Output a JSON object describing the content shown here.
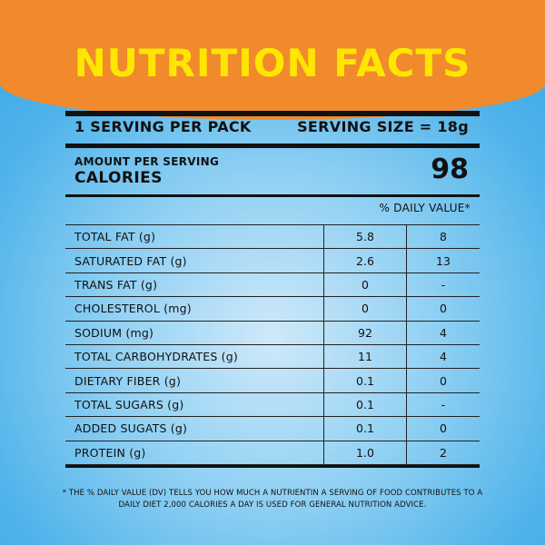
{
  "title": "NUTRITION FACTS",
  "serving": {
    "per_pack": "1 SERVING PER PACK",
    "size": "SERVING SIZE = 18g"
  },
  "calories": {
    "amount_label": "AMOUNT PER SERVING",
    "label": "CALORIES",
    "value": "98"
  },
  "daily_value_header": "% DAILY VALUE*",
  "rows": [
    {
      "nutrient": "TOTAL FAT (g)",
      "amount": "5.8",
      "dv": "8"
    },
    {
      "nutrient": "SATURATED FAT (g)",
      "amount": "2.6",
      "dv": "13"
    },
    {
      "nutrient": "TRANS FAT (g)",
      "amount": "0",
      "dv": "-"
    },
    {
      "nutrient": "CHOLESTEROL (mg)",
      "amount": "0",
      "dv": "0"
    },
    {
      "nutrient": "SODIUM (mg)",
      "amount": "92",
      "dv": "4"
    },
    {
      "nutrient": "TOTAL CARBOHYDRATES (g)",
      "amount": "11",
      "dv": "4"
    },
    {
      "nutrient": "DIETARY FIBER (g)",
      "amount": "0.1",
      "dv": "0"
    },
    {
      "nutrient": "TOTAL SUGARS (g)",
      "amount": "0.1",
      "dv": "-"
    },
    {
      "nutrient": "ADDED SUGATS (g)",
      "amount": "0.1",
      "dv": "0"
    },
    {
      "nutrient": "PROTEIN (g)",
      "amount": "1.0",
      "dv": "2"
    }
  ],
  "footnote_line1": "* THE % DAILY VALUE (DV) TELLS YOU HOW MUCH A NUTRIENTIN A SERVING OF FOOD CONTRIBUTES TO A",
  "footnote_line2": "DAILY DIET 2,000 CALORIES A DAY IS USED FOR GENERAL NUTRITION ADVICE.",
  "colors": {
    "header_orange": "#f08a2d",
    "title_yellow": "#ffe600",
    "background_blue": "#4fb3ea"
  }
}
